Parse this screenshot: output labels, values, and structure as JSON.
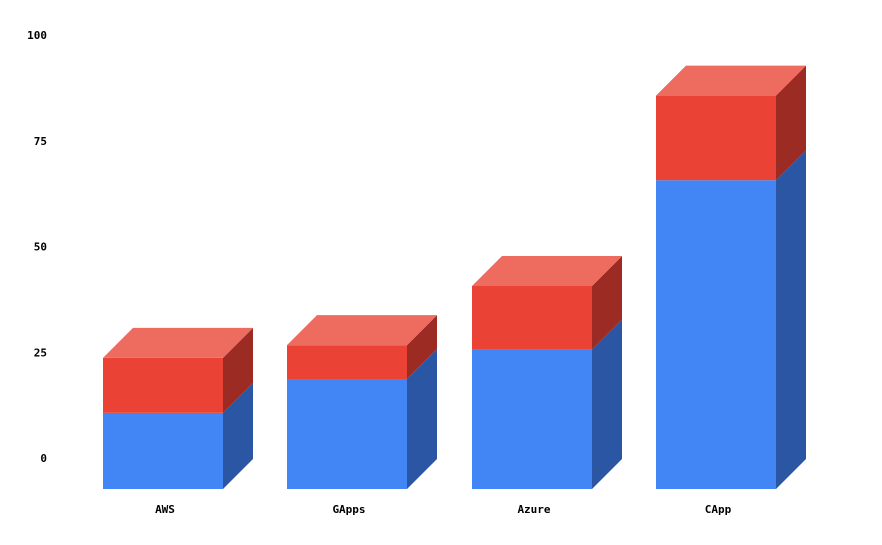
{
  "chart_data": {
    "type": "bar",
    "stacked": true,
    "three_d": true,
    "categories": [
      "AWS",
      "GApps",
      "Azure",
      "CApp"
    ],
    "series": [
      {
        "values": [
          18,
          26,
          33,
          73
        ],
        "color": "#4285f4",
        "side_color": "#2a56a3"
      },
      {
        "values": [
          13,
          8,
          15,
          20
        ],
        "color": "#ea4335",
        "side_color": "#9c2b23",
        "top_color": "#ee6b60"
      }
    ],
    "ylim": [
      0,
      100
    ],
    "y_ticks": [
      "0",
      "25",
      "50",
      "75",
      "100"
    ],
    "y_tick_values": [
      0,
      25,
      50,
      75,
      100
    ],
    "grid": false,
    "legend": "none",
    "title": "",
    "xlabel": "",
    "ylabel": ""
  }
}
